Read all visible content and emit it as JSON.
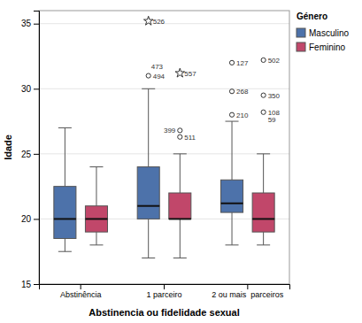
{
  "chart_data": {
    "type": "box",
    "xlabel": "Abstinencia ou fidelidade sexual",
    "ylabel": "Idade",
    "categories": [
      "Abstinência",
      "1 parceiro",
      "2 ou mais  parceiros"
    ],
    "ylim": [
      15,
      36
    ],
    "yticks": [
      15,
      20,
      25,
      30,
      35
    ],
    "grid": true,
    "legend": "right",
    "legend_title": "Género",
    "series": [
      {
        "name": "Masculino",
        "color": "#4D72AA",
        "boxes": [
          {
            "q1": 18.5,
            "median": 20.0,
            "q3": 22.5,
            "whisker_low": 17.5,
            "whisker_high": 27.0,
            "outliers": [],
            "outlier_labels": [],
            "stars": [],
            "star_labels": []
          },
          {
            "q1": 20.0,
            "median": 21.0,
            "q3": 24.0,
            "whisker_low": 17.0,
            "whisker_high": 30.0,
            "outliers": [
              31.0
            ],
            "outlier_labels": [
              "494"
            ],
            "stars": [
              35.2
            ],
            "star_labels": [
              "526"
            ]
          },
          {
            "q1": 20.5,
            "median": 21.2,
            "q3": 23.0,
            "whisker_low": 18.0,
            "whisker_high": 27.5,
            "outliers": [
              28.0,
              29.8,
              32.0
            ],
            "outlier_labels": [
              "210",
              "268",
              "127"
            ],
            "stars": [],
            "star_labels": []
          }
        ]
      },
      {
        "name": "Feminino",
        "color": "#C1476A",
        "boxes": [
          {
            "q1": 19.0,
            "median": 20.0,
            "q3": 21.0,
            "whisker_low": 18.0,
            "whisker_high": 24.0,
            "outliers": [],
            "outlier_labels": [],
            "stars": [],
            "star_labels": []
          },
          {
            "q1": 20.0,
            "median": 20.0,
            "q3": 22.0,
            "whisker_low": 17.0,
            "whisker_high": 25.0,
            "outliers": [
              26.3,
              26.8
            ],
            "outlier_labels": [
              "511",
              "399"
            ],
            "stars": [
              31.2
            ],
            "star_labels": [
              "557"
            ]
          },
          {
            "q1": 19.0,
            "median": 20.0,
            "q3": 22.0,
            "whisker_low": 18.0,
            "whisker_high": 25.0,
            "outliers": [
              28.2,
              29.5,
              32.2
            ],
            "outlier_labels": [
              "108\n59",
              "350",
              "502"
            ],
            "stars": [],
            "star_labels": []
          }
        ]
      }
    ],
    "annotations": [
      {
        "text": "473",
        "category": "1 parceiro",
        "series": "Masculino",
        "y": 31.0
      }
    ]
  }
}
